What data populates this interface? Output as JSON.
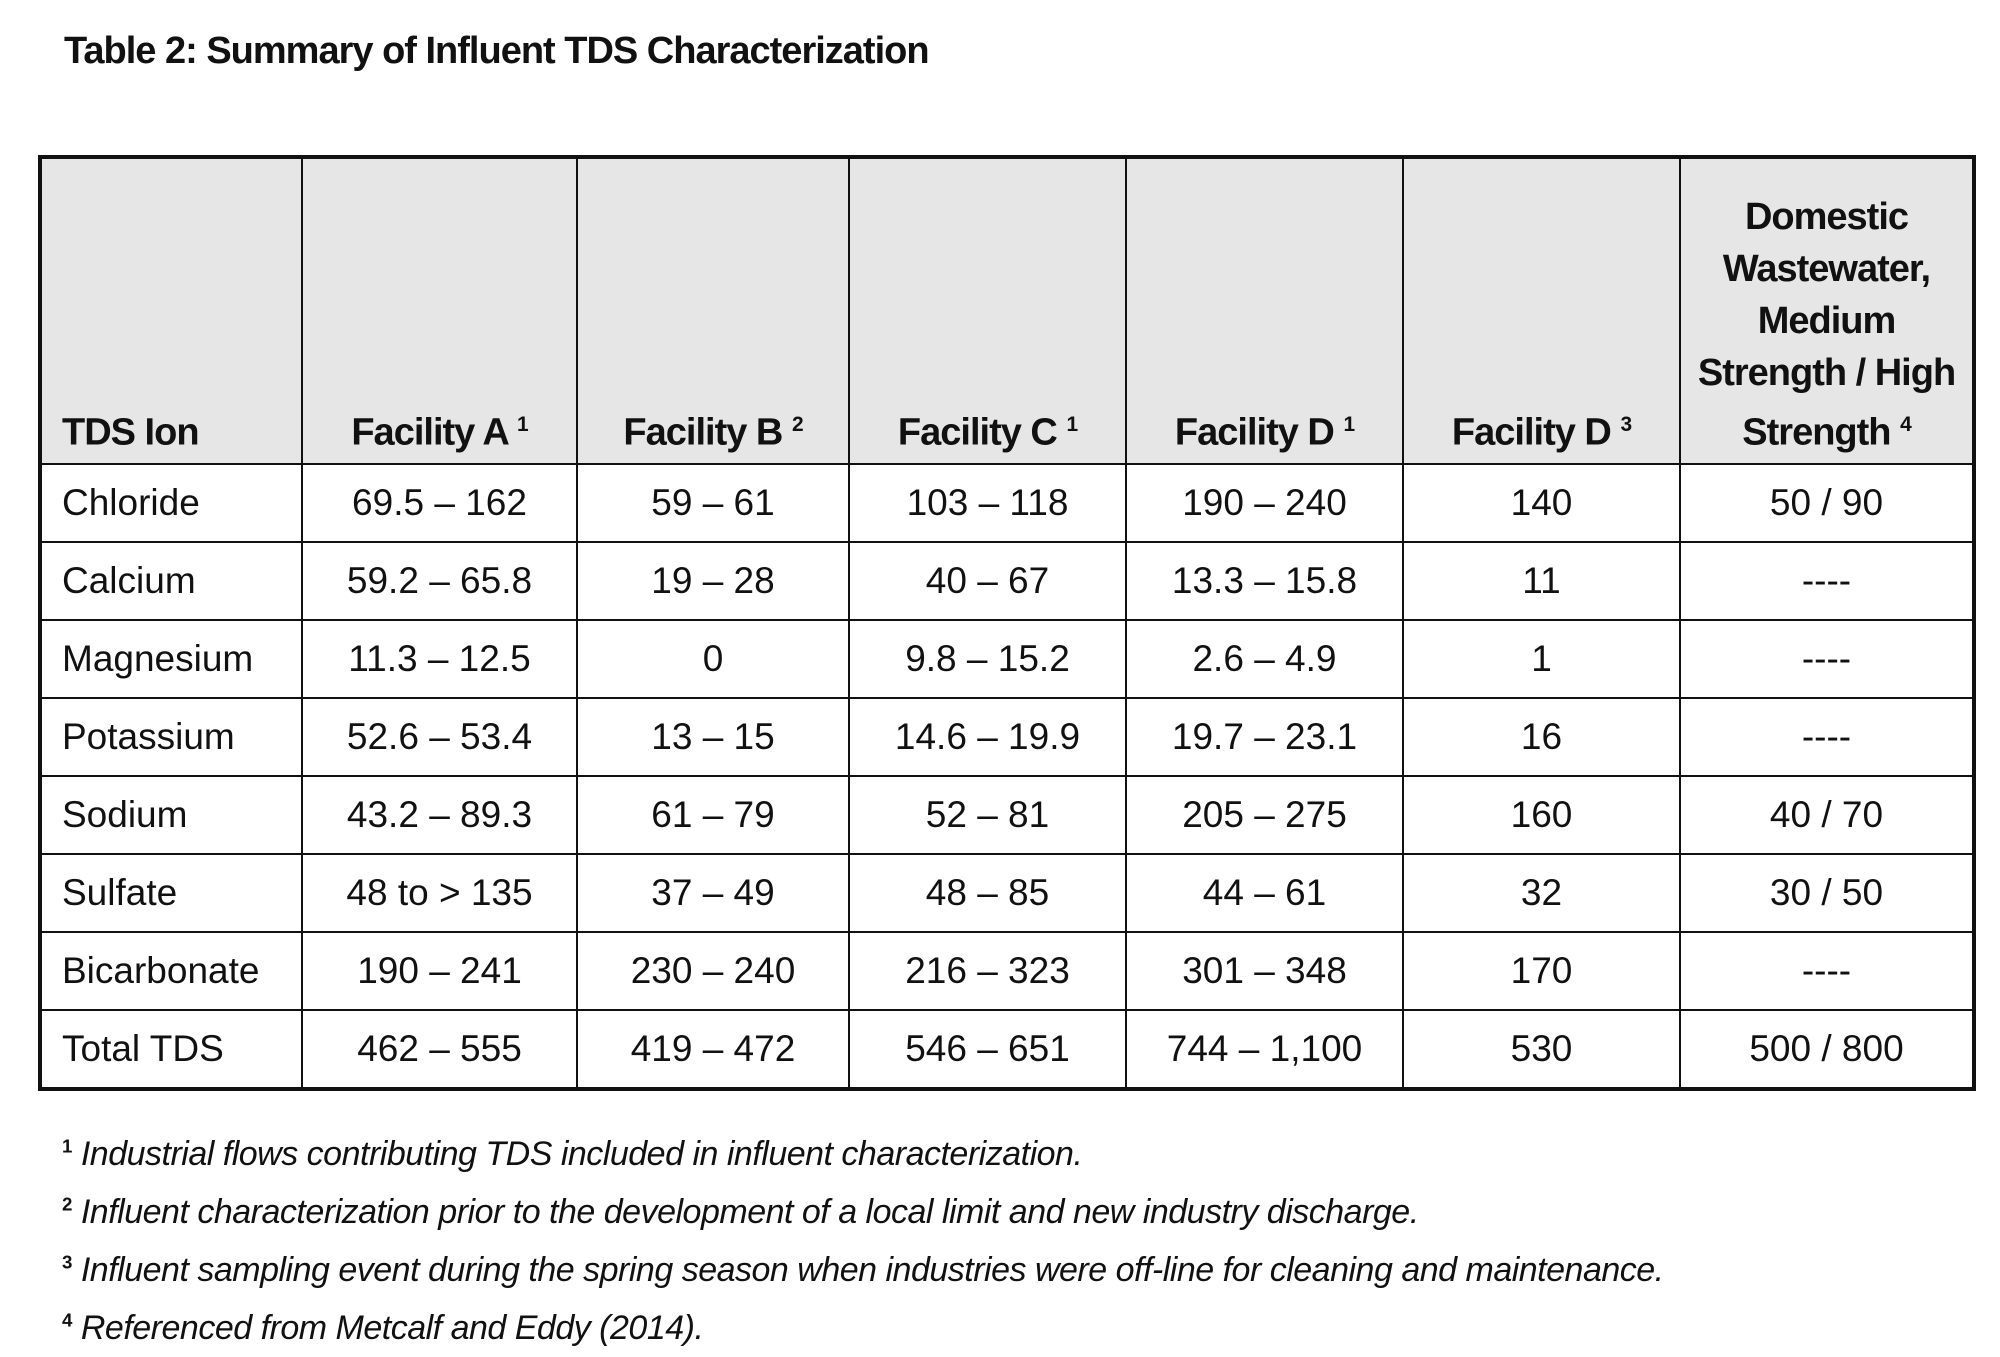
{
  "caption": "Table 2:  Summary of Influent TDS Characterization",
  "headers": [
    {
      "label": "TDS Ion",
      "sup": ""
    },
    {
      "label": "Facility A",
      "sup": "1"
    },
    {
      "label": "Facility B",
      "sup": "2"
    },
    {
      "label": "Facility C",
      "sup": "1"
    },
    {
      "label": "Facility D",
      "sup": "1"
    },
    {
      "label": "Facility D",
      "sup": "3"
    },
    {
      "label": "Domestic Wastewater, Medium Strength / High Strength",
      "sup": "4"
    }
  ],
  "rows": [
    [
      "Chloride",
      "69.5 – 162",
      "59 – 61",
      "103 – 118",
      "190 – 240",
      "140",
      "50 / 90"
    ],
    [
      "Calcium",
      "59.2 – 65.8",
      "19 – 28",
      "40 – 67",
      "13.3 – 15.8",
      "11",
      "----"
    ],
    [
      "Magnesium",
      "11.3 – 12.5",
      "0",
      "9.8 – 15.2",
      "2.6 – 4.9",
      "1",
      "----"
    ],
    [
      "Potassium",
      "52.6 – 53.4",
      "13 – 15",
      "14.6 – 19.9",
      "19.7 – 23.1",
      "16",
      "----"
    ],
    [
      "Sodium",
      "43.2 – 89.3",
      "61 – 79",
      "52 – 81",
      "205 – 275",
      "160",
      "40 / 70"
    ],
    [
      "Sulfate",
      "48 to > 135",
      "37 – 49",
      "48 – 85",
      "44 – 61",
      "32",
      "30 / 50"
    ],
    [
      "Bicarbonate",
      "190 – 241",
      "230 – 240",
      "216 – 323",
      "301 – 348",
      "170",
      "----"
    ],
    [
      "Total TDS",
      "462 – 555",
      "419 – 472",
      "546 – 651",
      "744 – 1,100",
      "530",
      "500 / 800"
    ]
  ],
  "footnotes": [
    {
      "mark": "1",
      "text": "Industrial flows contributing TDS included in influent characterization."
    },
    {
      "mark": "2",
      "text": "Influent characterization prior to the development of a local limit and new industry discharge."
    },
    {
      "mark": "3",
      "text": "Influent sampling event during the spring season when industries were off-line for cleaning and maintenance."
    },
    {
      "mark": "4",
      "text": "Referenced from Metcalf and Eddy (2014)."
    }
  ]
}
